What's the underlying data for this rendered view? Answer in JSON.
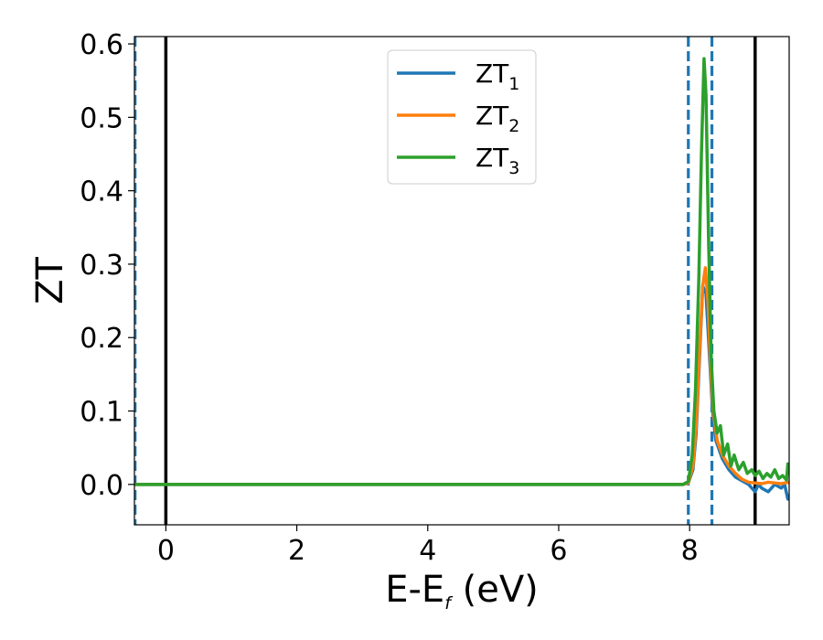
{
  "chart_data": {
    "type": "line",
    "xlabel": "E-E",
    "xlabel_sub": "f",
    "xlabel_unit": " (eV)",
    "ylabel": "ZT",
    "xlim": [
      -0.48,
      9.52
    ],
    "ylim": [
      -0.055,
      0.61
    ],
    "xticks": [
      0,
      2,
      4,
      6,
      8
    ],
    "xtick_labels": [
      "0",
      "2",
      "4",
      "6",
      "8"
    ],
    "yticks": [
      0.0,
      0.1,
      0.2,
      0.3,
      0.4,
      0.5,
      0.6
    ],
    "ytick_labels": [
      "0.0",
      "0.1",
      "0.2",
      "0.3",
      "0.4",
      "0.5",
      "0.6"
    ],
    "grid": false,
    "legend_position": "top-center",
    "vlines": [
      {
        "x": 0,
        "style": "solid",
        "color": "#000000"
      },
      {
        "x": 9.0,
        "style": "solid",
        "color": "#000000"
      },
      {
        "x": 7.98,
        "style": "dashed",
        "color": "#1f77b4"
      },
      {
        "x": 8.34,
        "style": "dashed",
        "color": "#1f77b4"
      },
      {
        "x": -0.47,
        "style": "dashed",
        "color": "#1f77b4"
      }
    ],
    "series": [
      {
        "name": "ZT",
        "sub": "1",
        "color": "#1f77b4",
        "x": [
          -0.48,
          7.9,
          7.98,
          8.05,
          8.1,
          8.15,
          8.2,
          8.25,
          8.3,
          8.35,
          8.4,
          8.5,
          8.6,
          8.7,
          8.8,
          8.9,
          9.0,
          9.05,
          9.1,
          9.2,
          9.3,
          9.4,
          9.45,
          9.5,
          9.52
        ],
        "y": [
          0,
          0,
          0.002,
          0.02,
          0.07,
          0.17,
          0.27,
          0.26,
          0.18,
          0.1,
          0.06,
          0.035,
          0.02,
          0.01,
          0.005,
          0.0,
          -0.01,
          0.0,
          -0.005,
          -0.01,
          0.0,
          -0.005,
          0.0,
          -0.02,
          -0.015
        ]
      },
      {
        "name": "ZT",
        "sub": "2",
        "color": "#ff7f0e",
        "x": [
          -0.48,
          7.9,
          7.98,
          8.05,
          8.1,
          8.15,
          8.2,
          8.24,
          8.28,
          8.32,
          8.36,
          8.42,
          8.5,
          8.6,
          8.7,
          8.8,
          8.9,
          9.0,
          9.1,
          9.2,
          9.3,
          9.4,
          9.5,
          9.52
        ],
        "y": [
          0,
          0,
          0.002,
          0.025,
          0.08,
          0.18,
          0.27,
          0.295,
          0.25,
          0.16,
          0.1,
          0.06,
          0.04,
          0.025,
          0.015,
          0.007,
          0.003,
          0.002,
          0.001,
          0.003,
          0.002,
          0.001,
          0.003,
          0.002
        ]
      },
      {
        "name": "ZT",
        "sub": "3",
        "color": "#2ca02c",
        "x": [
          -0.48,
          7.9,
          7.98,
          8.04,
          8.09,
          8.14,
          8.18,
          8.22,
          8.25,
          8.29,
          8.33,
          8.37,
          8.42,
          8.47,
          8.52,
          8.58,
          8.63,
          8.68,
          8.75,
          8.82,
          8.88,
          8.95,
          9.0,
          9.06,
          9.12,
          9.18,
          9.24,
          9.3,
          9.36,
          9.42,
          9.48,
          9.5,
          9.52
        ],
        "y": [
          0,
          0,
          0.004,
          0.04,
          0.13,
          0.28,
          0.45,
          0.58,
          0.53,
          0.33,
          0.17,
          0.1,
          0.07,
          0.08,
          0.04,
          0.055,
          0.025,
          0.04,
          0.02,
          0.03,
          0.015,
          0.02,
          0.012,
          0.018,
          0.008,
          0.015,
          0.01,
          0.02,
          0.008,
          0.012,
          0.006,
          0.028,
          0.02
        ]
      }
    ]
  }
}
